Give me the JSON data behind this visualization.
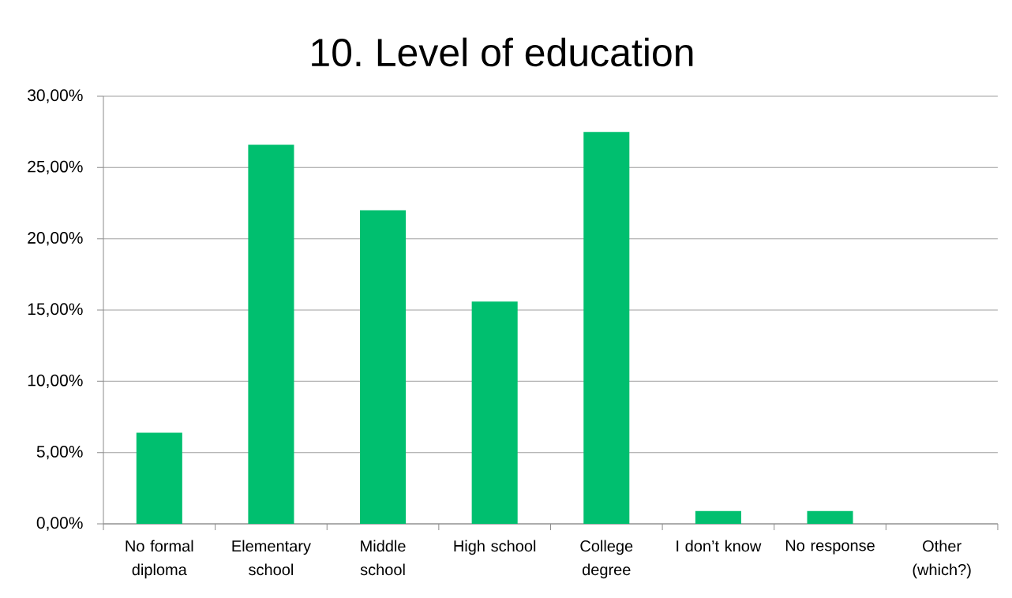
{
  "chart_data": {
    "type": "bar",
    "title": "10. Level of education",
    "categories": [
      "No formal diploma",
      "Elementary school",
      "Middle school",
      "High school",
      "College degree",
      "I don’t know",
      "No response",
      "Other (which?)"
    ],
    "values": [
      6.4,
      26.6,
      22.0,
      15.6,
      27.5,
      0.9,
      0.9,
      0
    ],
    "color": "#00bf6f",
    "ylim": [
      0,
      30
    ],
    "yticks": [
      {
        "value": 0,
        "label": "0,00%"
      },
      {
        "value": 5,
        "label": "5,00%"
      },
      {
        "value": 10,
        "label": "10,00%"
      },
      {
        "value": 15,
        "label": "15,00%"
      },
      {
        "value": 20,
        "label": "20,00%"
      },
      {
        "value": 25,
        "label": "25,00%"
      },
      {
        "value": 30,
        "label": "30,00%"
      }
    ],
    "grid": "y"
  }
}
